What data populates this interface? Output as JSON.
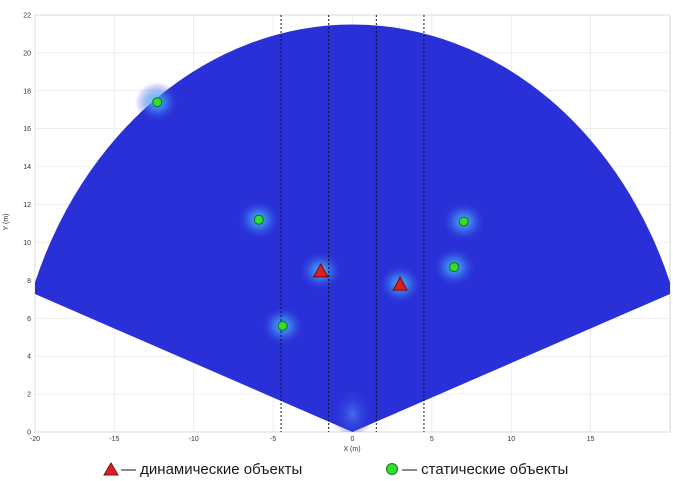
{
  "chart_data": {
    "type": "heatmap",
    "title": "",
    "xlabel": "X (m)",
    "ylabel": "Y (m)",
    "xlim": [
      -20,
      20
    ],
    "ylim": [
      0,
      22
    ],
    "x_ticks": [
      -20,
      -15,
      -10,
      -5,
      0,
      5,
      10,
      15
    ],
    "y_ticks": [
      0,
      2,
      4,
      6,
      8,
      10,
      12,
      14,
      16,
      18,
      20,
      22
    ],
    "grid": true,
    "colors": {
      "background": "#2a30d8",
      "hot_spot": "#3fa0f5",
      "dynamic_marker": "#e01c1c",
      "static_marker": "#2fe02f",
      "guide_lines": "#111111"
    },
    "sector": {
      "radius": 21.5,
      "start_angle_deg": 20,
      "end_angle_deg": 160
    },
    "vertical_guides_x": [
      -4.5,
      -1.5,
      1.5,
      4.5
    ],
    "dynamic_objects": [
      {
        "x": -2.0,
        "y": 8.5
      },
      {
        "x": 3.0,
        "y": 7.8
      }
    ],
    "static_objects": [
      {
        "x": -12.3,
        "y": 17.4
      },
      {
        "x": -5.9,
        "y": 11.2
      },
      {
        "x": -4.4,
        "y": 5.6
      },
      {
        "x": 6.4,
        "y": 8.7
      },
      {
        "x": 7.0,
        "y": 11.1
      }
    ]
  },
  "legend": {
    "dynamic_label": "— динамические объекты",
    "static_label": "— статические объекты",
    "placement": "bottom"
  }
}
